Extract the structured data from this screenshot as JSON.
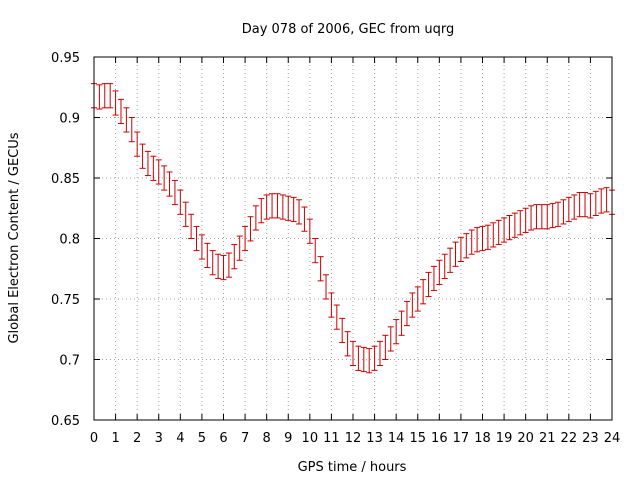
{
  "chart_data": {
    "type": "scatter",
    "title": "Day 078 of 2006, GEC from uqrg",
    "xlabel": "GPS time / hours",
    "ylabel": "Global Electron Content / GECUs",
    "xlim": [
      0,
      24
    ],
    "ylim": [
      0.65,
      0.95
    ],
    "xticks": [
      0,
      1,
      2,
      3,
      4,
      5,
      6,
      7,
      8,
      9,
      10,
      11,
      12,
      13,
      14,
      15,
      16,
      17,
      18,
      19,
      20,
      21,
      22,
      23,
      24
    ],
    "yticks": [
      0.65,
      0.7,
      0.75,
      0.8,
      0.85,
      0.9,
      0.95
    ],
    "ytick_labels": [
      "0.65",
      "0.7",
      "0.75",
      "0.8",
      "0.85",
      "0.9",
      "0.95"
    ],
    "grid": true,
    "error_bars": true,
    "series_color": "#cc0000",
    "grid_color": "#a0a0a0",
    "series": [
      {
        "x": [
          0,
          0.25,
          0.5,
          0.75,
          1,
          1.25,
          1.5,
          1.75,
          2,
          2.25,
          2.5,
          2.75,
          3,
          3.25,
          3.5,
          3.75,
          4,
          4.25,
          4.5,
          4.75,
          5,
          5.25,
          5.5,
          5.75,
          6,
          6.25,
          6.5,
          6.75,
          7,
          7.25,
          7.5,
          7.75,
          8,
          8.25,
          8.5,
          8.75,
          9,
          9.25,
          9.5,
          9.75,
          10,
          10.25,
          10.5,
          10.75,
          11,
          11.25,
          11.5,
          11.75,
          12,
          12.25,
          12.5,
          12.75,
          13,
          13.25,
          13.5,
          13.75,
          14,
          14.25,
          14.5,
          14.75,
          15,
          15.25,
          15.5,
          15.75,
          16,
          16.25,
          16.5,
          16.75,
          17,
          17.25,
          17.5,
          17.75,
          18,
          18.25,
          18.5,
          18.75,
          19,
          19.25,
          19.5,
          19.75,
          20,
          20.25,
          20.5,
          20.75,
          21,
          21.25,
          21.5,
          21.75,
          22,
          22.25,
          22.5,
          22.75,
          23,
          23.25,
          23.5,
          23.75,
          24
        ],
        "y": [
          0.918,
          0.917,
          0.918,
          0.918,
          0.912,
          0.905,
          0.898,
          0.89,
          0.878,
          0.868,
          0.862,
          0.858,
          0.855,
          0.85,
          0.845,
          0.838,
          0.83,
          0.82,
          0.81,
          0.8,
          0.793,
          0.786,
          0.78,
          0.777,
          0.776,
          0.778,
          0.785,
          0.792,
          0.8,
          0.808,
          0.817,
          0.823,
          0.826,
          0.827,
          0.827,
          0.826,
          0.825,
          0.824,
          0.822,
          0.816,
          0.806,
          0.79,
          0.775,
          0.76,
          0.745,
          0.735,
          0.724,
          0.713,
          0.705,
          0.701,
          0.7,
          0.699,
          0.701,
          0.705,
          0.71,
          0.717,
          0.723,
          0.73,
          0.738,
          0.745,
          0.75,
          0.756,
          0.762,
          0.767,
          0.772,
          0.777,
          0.782,
          0.787,
          0.791,
          0.794,
          0.797,
          0.799,
          0.8,
          0.801,
          0.803,
          0.805,
          0.807,
          0.809,
          0.811,
          0.813,
          0.815,
          0.817,
          0.818,
          0.818,
          0.818,
          0.819,
          0.82,
          0.822,
          0.824,
          0.826,
          0.828,
          0.828,
          0.827,
          0.829,
          0.831,
          0.832,
          0.83
        ],
        "yerr": 0.01
      }
    ]
  }
}
